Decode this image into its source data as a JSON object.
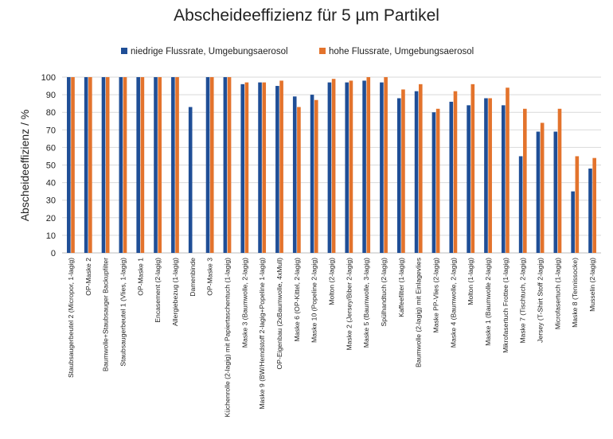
{
  "chart_data": {
    "type": "bar",
    "title": "Abscheideeffizienz für 5 µm Partikel",
    "xlabel": "",
    "ylabel": "Abscheideeffizienz / %",
    "ylim": [
      0,
      100
    ],
    "yticks": [
      0,
      10,
      20,
      30,
      40,
      50,
      60,
      70,
      80,
      90,
      100
    ],
    "grid": true,
    "legend_position": "top",
    "categories": [
      "Staubsaugerbeutel 2 (Micropor, 1-lagig)",
      "OP-Maske 2",
      "Baumwolle+Staubsauger Backupfilter",
      "Staubsaugerbeutel 1 (Vlies, 1-lagig)",
      "OP-Maske 1",
      "Encasement (2-lagig)",
      "Allergiebezug (1-lagig)",
      "Damenbinde",
      "OP-Maske 3",
      "Küchenrolle (2-lagig) mit Papiertaschentuch (1-lagig)",
      "Maske 3 (Baumwolle, 2-lagig)",
      "Maske 9 (BW/Hemdstoff 2-lagig+Popeline 1-lagig)",
      "OP-Eigenbau (2xBaumwolle, 4xMull)",
      "Maske 6 (OP-Kittel, 2-lagig)",
      "Maske 10 (Popeline 2-lagig)",
      "Molton (2-lagig)",
      "Maske 2 (Jersey/Biber 2-lagig)",
      "Maske 5 (Baumwolle, 3-lagig)",
      "Spülhandtuch (2-lagig)",
      "Kaffeefilter (1-lagig)",
      "Baumwolle (2-lagig) mit Einlagevlies",
      "Maske PP-Vlies (2-lagig)",
      "Maske 4 (Baumwolle, 2-lagig)",
      "Molton (1-lagig)",
      "Maske 1 (Baumwolle 2-lagig)",
      "Mikrofasertuch Frottee (1-lagig)",
      "Maske 7 (Tischtuch, 2-lagig)",
      "Jersey (T-Shirt Stoff 2-lagig)",
      "Microfasertuch (1-lagig)",
      "Maske 8 (Tennissocke)",
      "Musselin (2-lagig)"
    ],
    "series": [
      {
        "name": "niedrige Flussrate, Umgebungsaerosol",
        "color": "#1f4e96",
        "values": [
          100,
          100,
          100,
          100,
          100,
          100,
          100,
          83,
          100,
          100,
          96,
          97,
          95,
          89,
          90,
          97,
          97,
          98,
          97,
          88,
          92,
          80,
          86,
          84,
          88,
          84,
          55,
          69,
          69,
          35,
          48
        ]
      },
      {
        "name": "hohe Flussrate, Umgebungsaerosol",
        "color": "#e3732c",
        "values": [
          100,
          100,
          100,
          100,
          100,
          100,
          100,
          null,
          100,
          100,
          97,
          97,
          98,
          83,
          87,
          99,
          98,
          100,
          100,
          93,
          96,
          82,
          92,
          96,
          88,
          94,
          82,
          74,
          82,
          55,
          54
        ]
      }
    ]
  }
}
